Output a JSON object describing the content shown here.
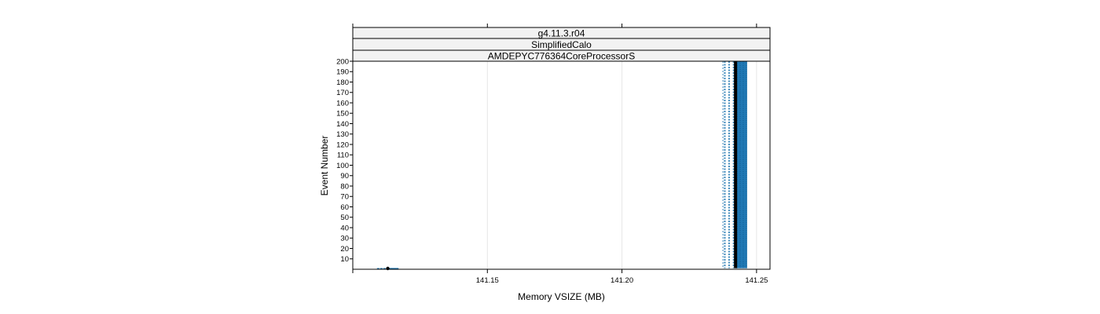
{
  "chart_data": {
    "type": "scatter",
    "strips": [
      "g4.11.3.r04",
      "SimplifiedCalo",
      "AMDEPYC776364CoreProcessorS"
    ],
    "xlabel": "Memory VSIZE (MB)",
    "ylabel": "Event Number",
    "xlim": [
      141.1,
      141.255
    ],
    "ylim": [
      0,
      200
    ],
    "x_ticks": [
      141.15,
      141.2,
      141.25
    ],
    "x_tick_labels": [
      "141.15",
      "141.20",
      "141.25"
    ],
    "y_ticks": [
      10,
      20,
      30,
      40,
      50,
      60,
      70,
      80,
      90,
      100,
      110,
      120,
      130,
      140,
      150,
      160,
      170,
      180,
      190,
      200
    ],
    "grid": true,
    "colors": {
      "points": "#1f78b4",
      "lines": "#4a90bf",
      "mean_line": "#000000",
      "strip_bg": "#f2f2f2",
      "grid": "#e6e6e6"
    },
    "series": [
      {
        "kind": "low-cluster",
        "y_range": [
          0,
          1
        ],
        "x_min": 141.109,
        "x_max": 141.117,
        "mean_x": 141.113
      },
      {
        "kind": "vertical-band",
        "y_range": [
          1,
          200
        ],
        "x_min": 141.2375,
        "x_max": 141.2465,
        "dotted_lines_x": [
          141.2382,
          141.2398,
          141.2415
        ],
        "mean_x": 141.2422
      }
    ]
  }
}
